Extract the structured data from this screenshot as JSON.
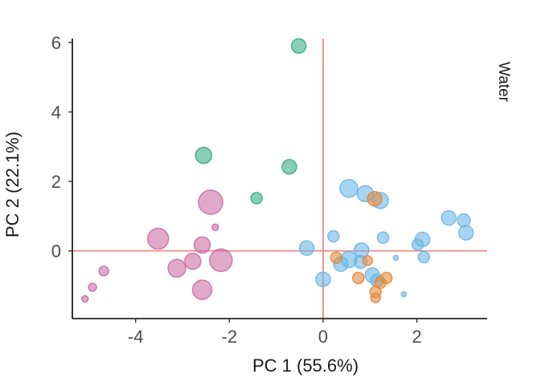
{
  "chart_data": {
    "type": "scatter",
    "facet_label": "Water",
    "xlabel": "PC 1 (55.6%)",
    "ylabel": "PC 2 (22.1%)",
    "xlim": [
      -5.35,
      3.5
    ],
    "ylim": [
      -1.95,
      6.3
    ],
    "x_ticks": [
      -4,
      -2,
      0,
      2
    ],
    "x_tick_labels": [
      "-4",
      "-2",
      "0",
      "2"
    ],
    "y_ticks": [
      0,
      2,
      4,
      6
    ],
    "y_tick_labels": [
      "0",
      "2",
      "4",
      "6"
    ],
    "grid": false,
    "reference_lines": {
      "x": 0,
      "y": 0,
      "color": "#f07a78"
    },
    "series": [
      {
        "color": "#3aae86",
        "points": [
          {
            "x": -0.52,
            "y": 5.9,
            "size": 9
          },
          {
            "x": -2.55,
            "y": 2.75,
            "size": 10
          },
          {
            "x": -0.72,
            "y": 2.42,
            "size": 9
          },
          {
            "x": -1.42,
            "y": 1.52,
            "size": 7
          }
        ]
      },
      {
        "color": "#cc6fa6",
        "points": [
          {
            "x": -2.4,
            "y": 1.4,
            "size": 15
          },
          {
            "x": -2.3,
            "y": 0.68,
            "size": 4
          },
          {
            "x": -3.52,
            "y": 0.35,
            "size": 13
          },
          {
            "x": -2.58,
            "y": 0.17,
            "size": 10
          },
          {
            "x": -2.78,
            "y": -0.3,
            "size": 10
          },
          {
            "x": -2.18,
            "y": -0.27,
            "size": 14
          },
          {
            "x": -3.12,
            "y": -0.5,
            "size": 11
          },
          {
            "x": -2.58,
            "y": -1.12,
            "size": 12
          },
          {
            "x": -4.68,
            "y": -0.58,
            "size": 6
          },
          {
            "x": -4.92,
            "y": -1.05,
            "size": 5
          },
          {
            "x": -5.08,
            "y": -1.38,
            "size": 4
          }
        ]
      },
      {
        "color": "#6cb7e8",
        "points": [
          {
            "x": 0.55,
            "y": 1.8,
            "size": 11
          },
          {
            "x": 0.9,
            "y": 1.65,
            "size": 10
          },
          {
            "x": 1.22,
            "y": 1.45,
            "size": 10
          },
          {
            "x": 2.68,
            "y": 0.95,
            "size": 9
          },
          {
            "x": 3.0,
            "y": 0.88,
            "size": 8
          },
          {
            "x": 3.05,
            "y": 0.52,
            "size": 9
          },
          {
            "x": 2.12,
            "y": 0.33,
            "size": 9
          },
          {
            "x": 0.22,
            "y": 0.42,
            "size": 7
          },
          {
            "x": 1.28,
            "y": 0.38,
            "size": 7
          },
          {
            "x": 2.02,
            "y": 0.18,
            "size": 7
          },
          {
            "x": -0.35,
            "y": 0.08,
            "size": 9
          },
          {
            "x": 0.82,
            "y": 0.02,
            "size": 9
          },
          {
            "x": 2.15,
            "y": -0.18,
            "size": 7
          },
          {
            "x": 0.55,
            "y": -0.25,
            "size": 10
          },
          {
            "x": 0.8,
            "y": -0.32,
            "size": 8
          },
          {
            "x": 0.38,
            "y": -0.38,
            "size": 9
          },
          {
            "x": 1.05,
            "y": -0.7,
            "size": 9
          },
          {
            "x": 1.15,
            "y": -0.85,
            "size": 8
          },
          {
            "x": 0.0,
            "y": -0.82,
            "size": 9
          },
          {
            "x": 1.55,
            "y": -0.2,
            "size": 3
          },
          {
            "x": 1.72,
            "y": -1.25,
            "size": 3
          }
        ]
      },
      {
        "color": "#e58a3e",
        "points": [
          {
            "x": 1.1,
            "y": 1.5,
            "size": 9
          },
          {
            "x": 0.28,
            "y": -0.2,
            "size": 7
          },
          {
            "x": 0.95,
            "y": -0.28,
            "size": 6
          },
          {
            "x": 1.35,
            "y": -0.78,
            "size": 7
          },
          {
            "x": 1.22,
            "y": -0.92,
            "size": 7
          },
          {
            "x": 0.75,
            "y": -0.78,
            "size": 7
          },
          {
            "x": 1.12,
            "y": -1.18,
            "size": 7
          },
          {
            "x": 1.12,
            "y": -1.35,
            "size": 6
          }
        ]
      }
    ]
  }
}
